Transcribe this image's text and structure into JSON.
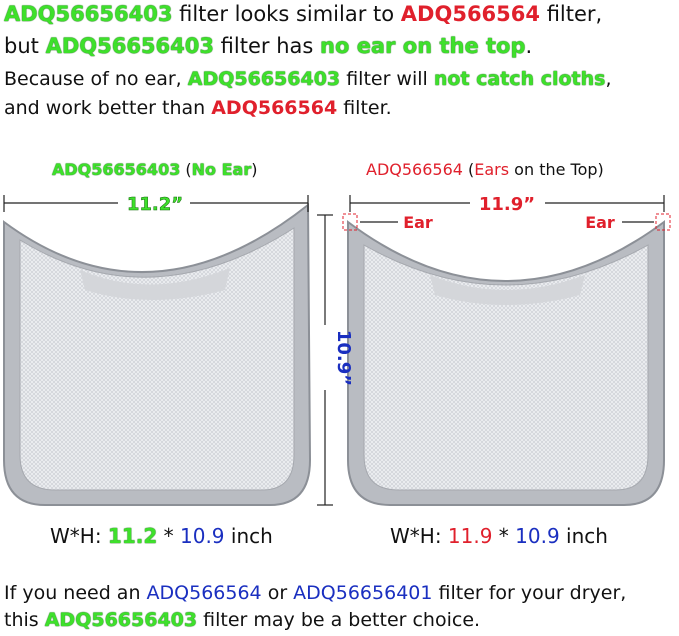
{
  "header": {
    "lines": [
      [
        "ADQ56656403",
        " filter looks similar to ",
        "ADQ566564",
        " filter,"
      ],
      [
        "but ",
        "ADQ56656403",
        " filter has ",
        "no ear on the top",
        "."
      ],
      [
        "Because of no ear, ",
        "ADQ56656403",
        " filter will ",
        "not catch cloths",
        ","
      ],
      [
        "and work better than ",
        "ADQ566564",
        " filter."
      ]
    ]
  },
  "left_filter": {
    "label": [
      "ADQ56656403",
      " (",
      "No Ear",
      ")"
    ],
    "width": "11.2”",
    "height": "10.9”",
    "dimensions": [
      "W*H: ",
      "11.2",
      " * ",
      "10.9",
      " inch"
    ]
  },
  "right_filter": {
    "label": [
      "ADQ566564",
      " (",
      "Ears",
      " on the Top)"
    ],
    "width": "11.9”",
    "ear_labels": [
      "Ear",
      "Ear"
    ],
    "dimensions": [
      "W*H: ",
      "11.9",
      " * ",
      "10.9",
      " inch"
    ]
  },
  "footer": {
    "lines": [
      [
        "If you need an ",
        "ADQ566564",
        " or ",
        "ADQ56656401",
        " filter for your dryer,"
      ],
      [
        "this ",
        "ADQ56656403",
        " filter may be a better choice."
      ]
    ]
  }
}
